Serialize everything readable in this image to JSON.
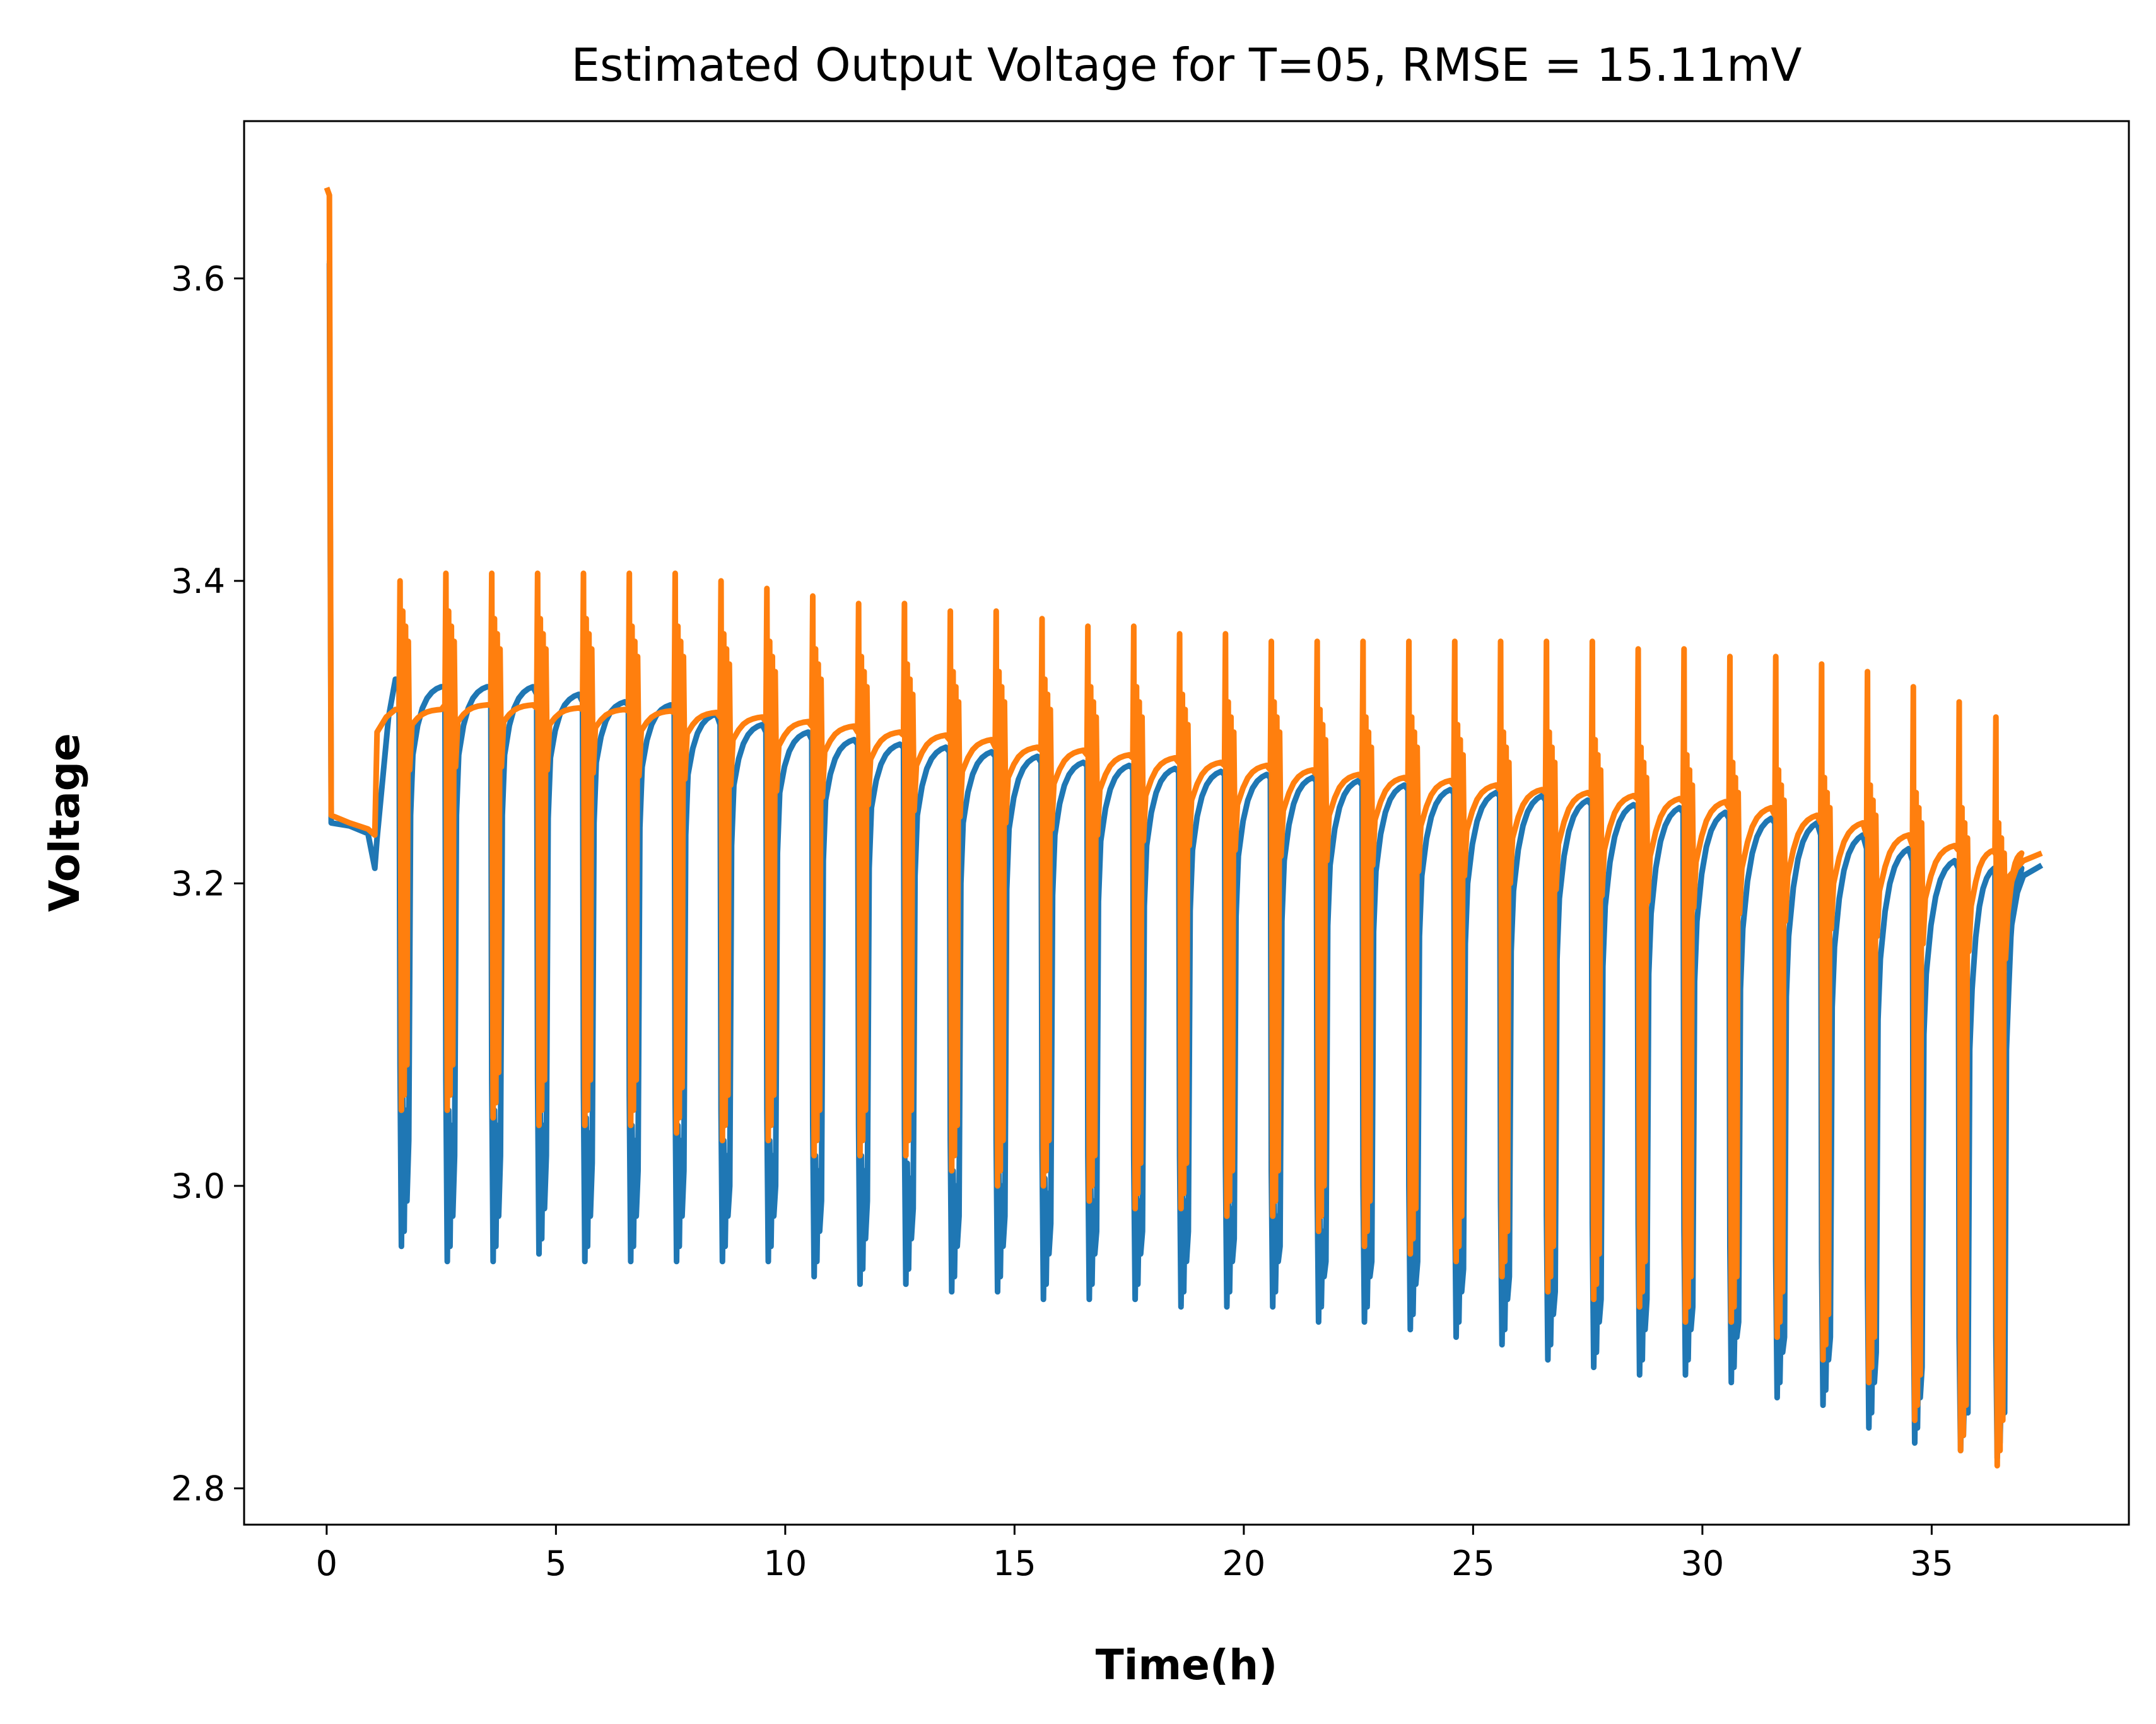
{
  "chart_data": {
    "type": "line",
    "title": "Estimated Output Voltage for T=05, RMSE = 15.11mV",
    "xlabel": "Time(h)",
    "ylabel": "Voltage",
    "xlim": [
      -1.8,
      39.3
    ],
    "ylim": [
      2.776,
      3.704
    ],
    "x_ticks": [
      0,
      5,
      10,
      15,
      20,
      25,
      30,
      35
    ],
    "x_tick_labels": [
      "0",
      "5",
      "10",
      "15",
      "20",
      "25",
      "30",
      "35"
    ],
    "y_ticks": [
      2.8,
      3.0,
      3.2,
      3.4,
      3.6
    ],
    "y_tick_labels": [
      "2.8",
      "3.0",
      "3.2",
      "3.4",
      "3.6"
    ],
    "grid": false,
    "legend": "none",
    "colors": {
      "measured": "#1f77b4",
      "estimated": "#ff7f0e"
    },
    "pulse_times_h": [
      1.6,
      2.6,
      3.6,
      4.6,
      5.6,
      6.6,
      7.6,
      8.6,
      9.6,
      10.6,
      11.6,
      12.6,
      13.6,
      14.6,
      15.6,
      16.6,
      17.6,
      18.6,
      19.6,
      20.6,
      21.6,
      22.6,
      23.6,
      24.6,
      25.6,
      26.6,
      27.6,
      28.6,
      29.6,
      30.6,
      31.6,
      32.6,
      33.6,
      34.6,
      35.6,
      36.4
    ],
    "series": [
      {
        "color": "#1f77b4",
        "points": [
          [
            0.0,
            3.61
          ],
          [
            0.06,
            3.61
          ],
          [
            0.1,
            3.24
          ],
          [
            0.5,
            3.238
          ],
          [
            0.9,
            3.233
          ],
          [
            1.05,
            3.21
          ],
          [
            1.1,
            3.23
          ],
          [
            1.35,
            3.31
          ],
          [
            1.5,
            3.335
          ]
        ],
        "rest_top": [
          3.33,
          3.33,
          3.33,
          3.325,
          3.32,
          3.318,
          3.312,
          3.305,
          3.3,
          3.295,
          3.292,
          3.29,
          3.287,
          3.284,
          3.28,
          3.278,
          3.276,
          3.274,
          3.272,
          3.27,
          3.268,
          3.265,
          3.262,
          3.26,
          3.258,
          3.255,
          3.252,
          3.25,
          3.247,
          3.243,
          3.24,
          3.232,
          3.223,
          3.215,
          3.21,
          3.21
        ],
        "rest_dip": [
          3.285,
          3.285,
          3.285,
          3.283,
          3.28,
          3.277,
          3.272,
          3.265,
          3.26,
          3.255,
          3.25,
          3.245,
          3.24,
          3.236,
          3.232,
          3.228,
          3.225,
          3.222,
          3.218,
          3.215,
          3.212,
          3.208,
          3.205,
          3.2,
          3.195,
          3.19,
          3.185,
          3.18,
          3.175,
          3.17,
          3.165,
          3.158,
          3.15,
          3.14,
          3.13,
          3.13
        ],
        "pulse_min": [
          2.96,
          2.95,
          2.95,
          2.955,
          2.95,
          2.95,
          2.95,
          2.95,
          2.95,
          2.94,
          2.935,
          2.935,
          2.93,
          2.93,
          2.925,
          2.925,
          2.925,
          2.92,
          2.92,
          2.92,
          2.91,
          2.91,
          2.905,
          2.9,
          2.895,
          2.885,
          2.88,
          2.875,
          2.875,
          2.87,
          2.86,
          2.855,
          2.84,
          2.83,
          2.825,
          2.82
        ],
        "pulse_max": [
          3.08,
          3.07,
          3.07,
          3.07,
          3.065,
          3.06,
          3.06,
          3.05,
          3.05,
          3.04,
          3.04,
          3.035,
          3.03,
          3.03,
          3.025,
          3.02,
          3.02,
          3.02,
          3.015,
          3.01,
          3.0,
          3.0,
          3.0,
          2.995,
          2.99,
          2.98,
          2.975,
          2.975,
          2.97,
          2.96,
          2.95,
          2.95,
          2.94,
          2.93,
          2.9,
          2.9
        ],
        "tail": [
          [
            36.5,
            3.13
          ],
          [
            36.7,
            3.18
          ],
          [
            37.0,
            3.205
          ],
          [
            37.4,
            3.212
          ]
        ]
      },
      {
        "color": "#ff7f0e",
        "points": [
          [
            0.0,
            3.66
          ],
          [
            0.06,
            3.655
          ],
          [
            0.1,
            3.245
          ],
          [
            0.5,
            3.24
          ],
          [
            0.9,
            3.236
          ],
          [
            1.05,
            3.232
          ],
          [
            1.1,
            3.3
          ],
          [
            1.3,
            3.31
          ],
          [
            1.5,
            3.315
          ]
        ],
        "rest_top": [
          3.315,
          3.318,
          3.318,
          3.316,
          3.315,
          3.314,
          3.313,
          3.31,
          3.307,
          3.304,
          3.3,
          3.298,
          3.295,
          3.29,
          3.288,
          3.285,
          3.283,
          3.28,
          3.278,
          3.275,
          3.272,
          3.27,
          3.268,
          3.265,
          3.262,
          3.26,
          3.258,
          3.256,
          3.254,
          3.25,
          3.245,
          3.24,
          3.232,
          3.225,
          3.222,
          3.22
        ],
        "rest_dip": [
          3.305,
          3.307,
          3.307,
          3.305,
          3.303,
          3.301,
          3.299,
          3.295,
          3.291,
          3.287,
          3.282,
          3.278,
          3.274,
          3.27,
          3.266,
          3.262,
          3.258,
          3.255,
          3.252,
          3.248,
          3.245,
          3.242,
          3.238,
          3.235,
          3.23,
          3.226,
          3.222,
          3.218,
          3.214,
          3.21,
          3.205,
          3.2,
          3.195,
          3.19,
          3.185,
          3.18
        ],
        "pulse_min": [
          3.05,
          3.05,
          3.045,
          3.04,
          3.04,
          3.04,
          3.035,
          3.03,
          3.03,
          3.02,
          3.02,
          3.02,
          3.01,
          3.0,
          3.0,
          2.99,
          2.985,
          2.985,
          2.98,
          2.98,
          2.97,
          2.96,
          2.955,
          2.95,
          2.94,
          2.93,
          2.925,
          2.92,
          2.91,
          2.91,
          2.9,
          2.885,
          2.87,
          2.845,
          2.825,
          2.815
        ],
        "pulse_max": [
          3.4,
          3.405,
          3.405,
          3.405,
          3.405,
          3.405,
          3.405,
          3.4,
          3.395,
          3.39,
          3.385,
          3.385,
          3.38,
          3.38,
          3.375,
          3.37,
          3.37,
          3.365,
          3.365,
          3.36,
          3.36,
          3.36,
          3.36,
          3.36,
          3.36,
          3.36,
          3.36,
          3.355,
          3.355,
          3.35,
          3.35,
          3.345,
          3.34,
          3.33,
          3.32,
          3.31
        ],
        "pulse_mid": [
          3.38,
          3.38,
          3.375,
          3.375,
          3.375,
          3.37,
          3.37,
          3.365,
          3.36,
          3.355,
          3.35,
          3.345,
          3.34,
          3.34,
          3.335,
          3.33,
          3.33,
          3.325,
          3.32,
          3.32,
          3.315,
          3.31,
          3.31,
          3.305,
          3.3,
          3.3,
          3.295,
          3.29,
          3.285,
          3.28,
          3.275,
          3.27,
          3.265,
          3.26,
          3.25,
          3.24
        ],
        "tail": [
          [
            36.5,
            3.18
          ],
          [
            36.7,
            3.205
          ],
          [
            37.0,
            3.215
          ],
          [
            37.4,
            3.22
          ]
        ]
      }
    ]
  }
}
